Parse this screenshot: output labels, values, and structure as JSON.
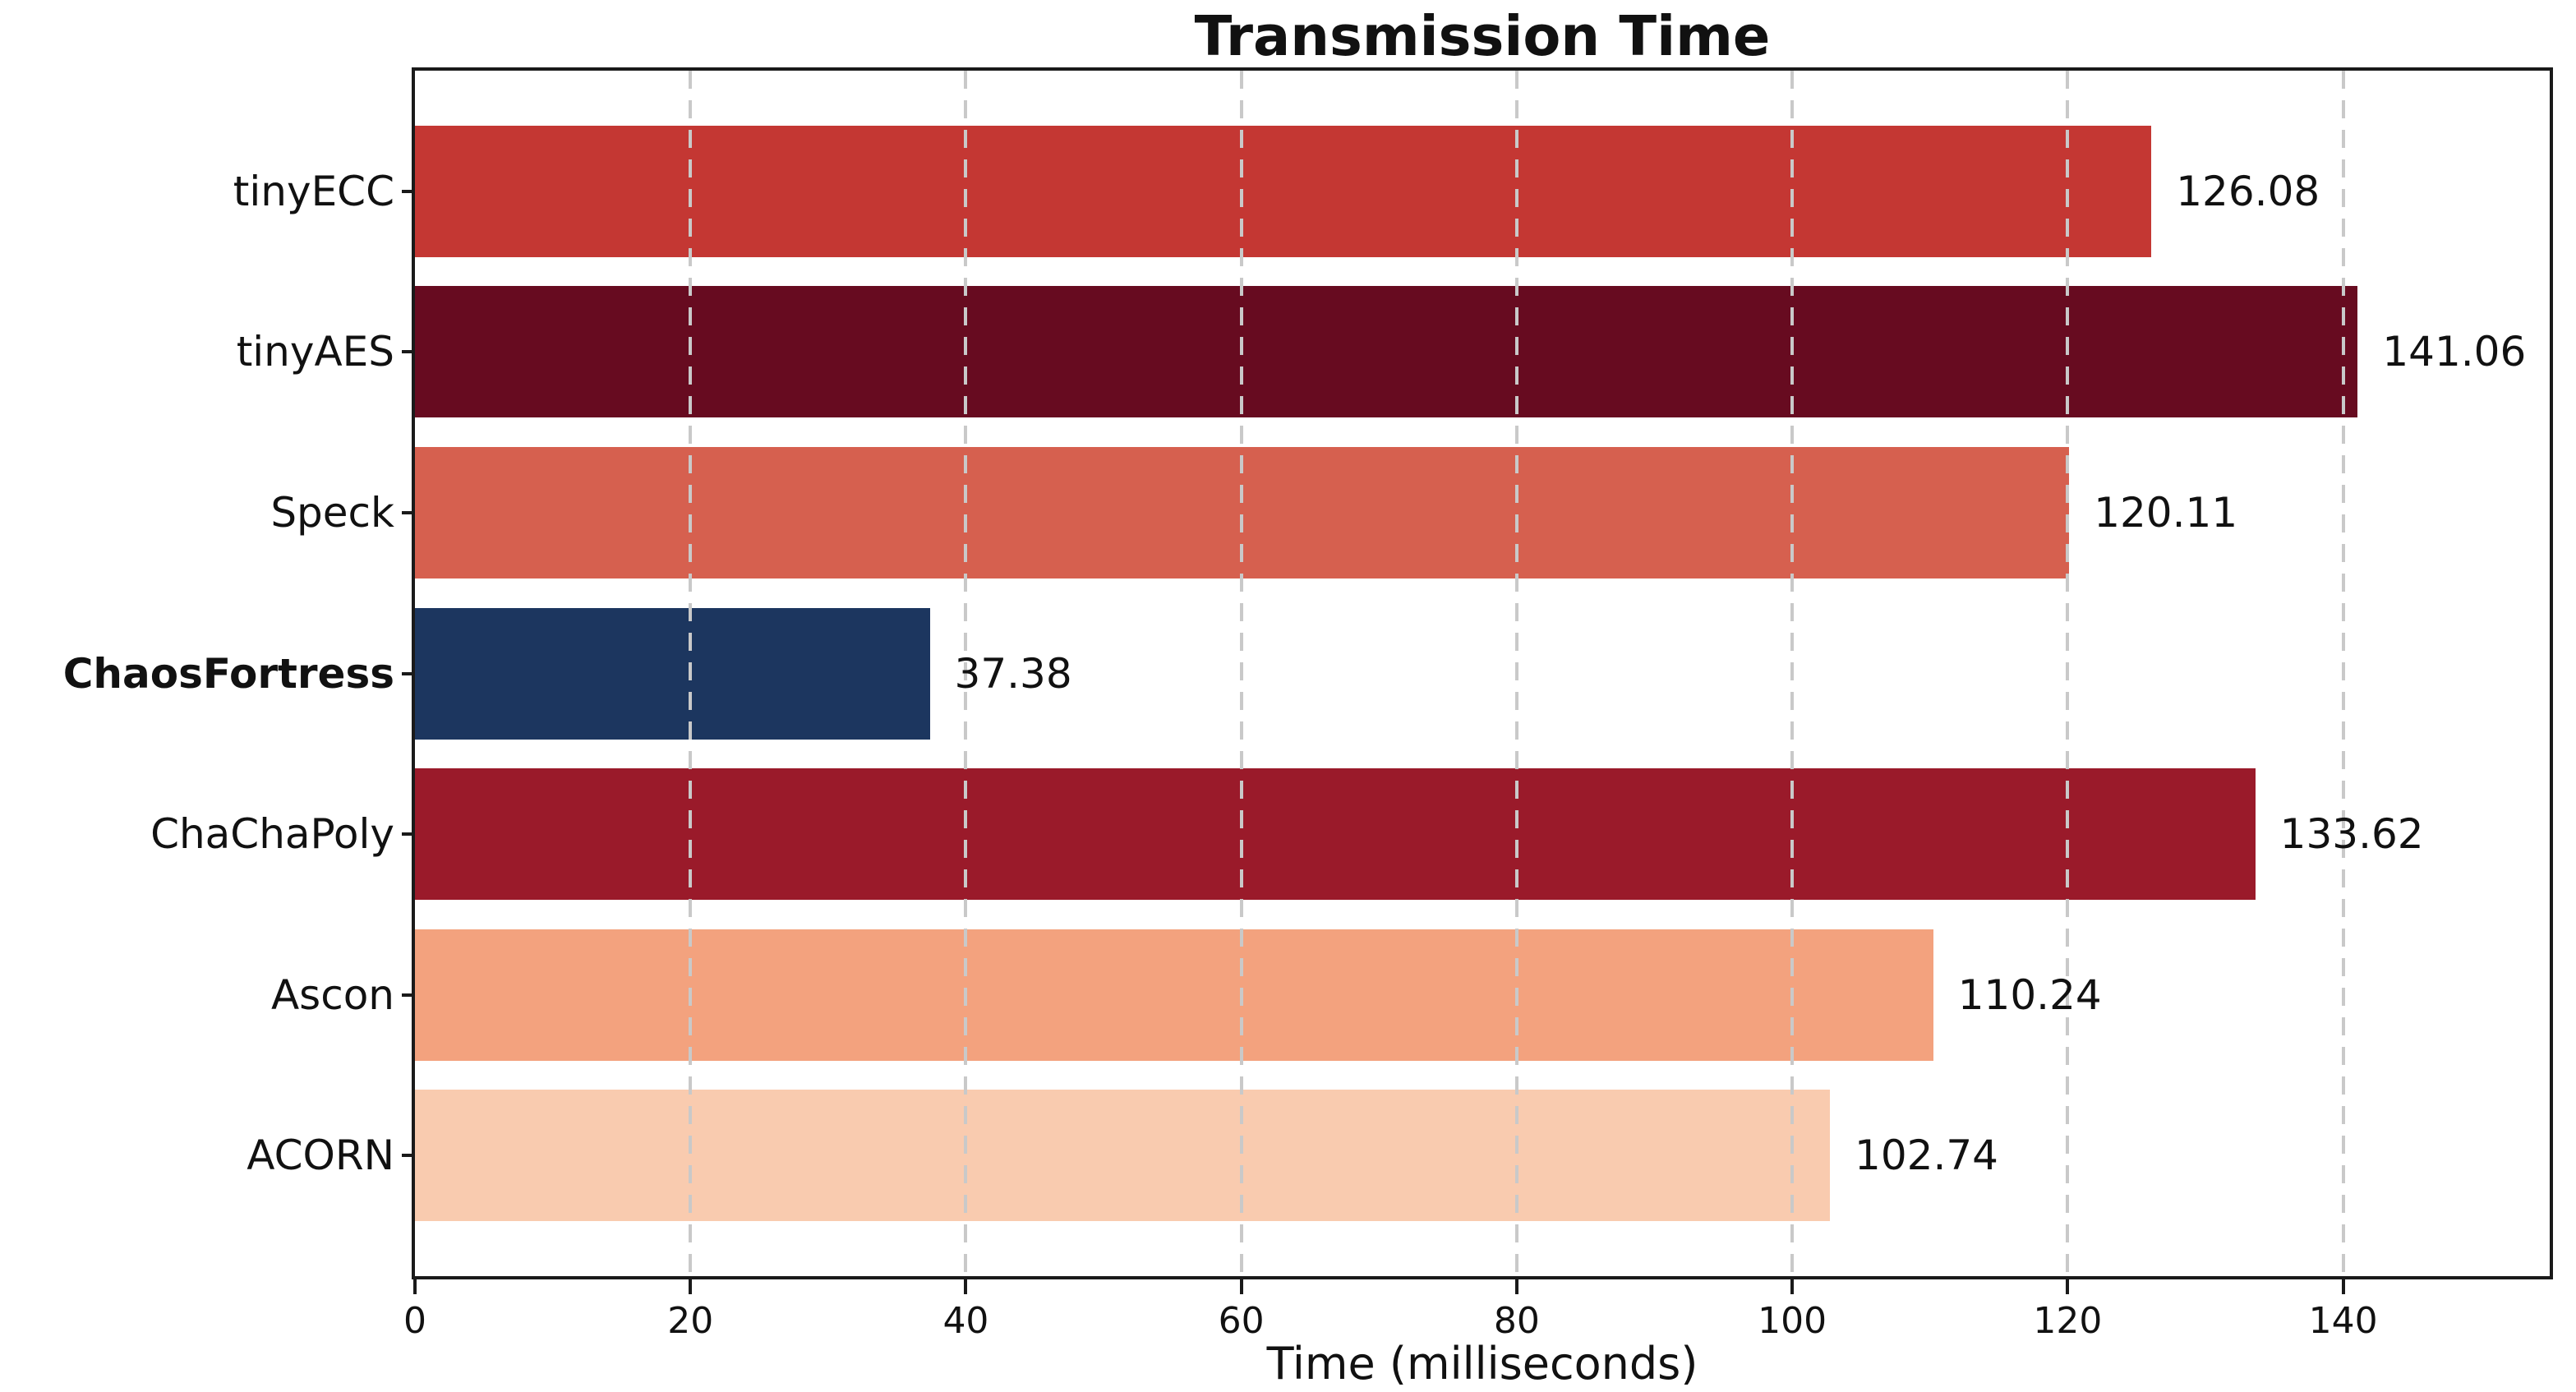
{
  "chart_data": {
    "type": "bar",
    "orientation": "horizontal",
    "title": "Transmission Time",
    "xlabel": "Time (milliseconds)",
    "ylabel": "",
    "categories": [
      "tinyECC",
      "tinyAES",
      "Speck",
      "ChaosFortress",
      "ChaChaPoly",
      "Ascon",
      "ACORN"
    ],
    "values": [
      126.08,
      141.06,
      120.11,
      37.38,
      133.62,
      110.24,
      102.74
    ],
    "value_labels": [
      "126.08",
      "141.06",
      "120.11",
      "37.38",
      "133.62",
      "110.24",
      "102.74"
    ],
    "bar_colors": [
      "#c43733",
      "#670b20",
      "#d6604f",
      "#1c365f",
      "#9a1a2a",
      "#f3a27e",
      "#f9cbaf"
    ],
    "highlighted_category": "ChaosFortress",
    "x_ticks": [
      0,
      20,
      40,
      60,
      80,
      100,
      120,
      140
    ],
    "x_tick_labels": [
      "0",
      "20",
      "40",
      "60",
      "80",
      "100",
      "120",
      "140"
    ],
    "xlim": [
      0,
      155
    ],
    "grid": {
      "axis": "x",
      "style": "dashed",
      "color": "#c9c9c9",
      "drawn_above_bars": true
    },
    "legend": null,
    "colors": {
      "spine": "#1a1a1a",
      "text": "#111111",
      "grid": "#c9c9c9",
      "background": "#ffffff"
    }
  }
}
